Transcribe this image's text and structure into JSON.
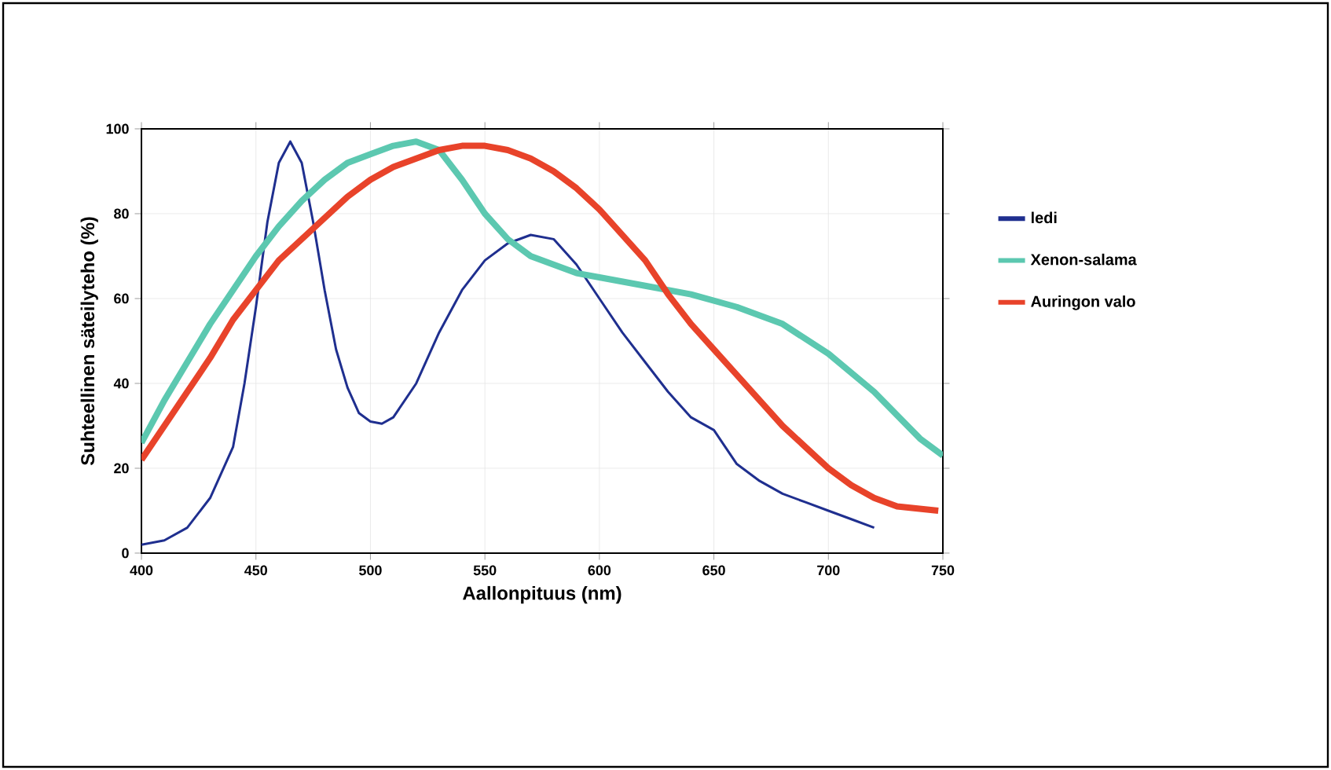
{
  "chart_data": {
    "type": "line",
    "xlabel": "Aallonpituus (nm)",
    "ylabel": "Suhteellinen säteilyteho (%)",
    "xlim": [
      400,
      750
    ],
    "ylim": [
      0,
      100
    ],
    "xticks": [
      400,
      450,
      500,
      550,
      600,
      650,
      700,
      750
    ],
    "yticks": [
      0,
      20,
      40,
      60,
      80,
      100
    ],
    "grid": true,
    "legend": "right",
    "series": [
      {
        "name": "ledi",
        "color": "#1f2f8f",
        "x": [
          400,
          410,
          420,
          430,
          440,
          445,
          450,
          455,
          460,
          465,
          470,
          475,
          480,
          485,
          490,
          495,
          500,
          505,
          510,
          520,
          530,
          540,
          550,
          560,
          570,
          580,
          590,
          600,
          610,
          620,
          630,
          640,
          650,
          660,
          670,
          680,
          690,
          700,
          710,
          720
        ],
        "values": [
          2,
          3,
          6,
          13,
          25,
          40,
          58,
          78,
          92,
          97,
          92,
          78,
          62,
          48,
          39,
          33,
          31,
          30.5,
          32,
          40,
          52,
          62,
          69,
          73,
          75,
          74,
          68,
          60,
          52,
          45,
          38,
          32,
          29,
          21,
          17,
          14,
          12,
          10,
          8,
          6
        ]
      },
      {
        "name": "Xenon-salama",
        "color": "#5cc8b0",
        "x": [
          400,
          410,
          420,
          430,
          440,
          450,
          460,
          470,
          480,
          490,
          500,
          510,
          520,
          530,
          540,
          550,
          560,
          570,
          580,
          590,
          600,
          620,
          640,
          660,
          680,
          700,
          720,
          740,
          750
        ],
        "values": [
          26,
          36,
          45,
          54,
          62,
          70,
          77,
          83,
          88,
          92,
          94,
          96,
          97,
          95,
          88,
          80,
          74,
          70,
          68,
          66,
          65,
          63,
          61,
          58,
          54,
          47,
          38,
          27,
          23
        ]
      },
      {
        "name": "Auringon valo",
        "color": "#e8432a",
        "x": [
          400,
          410,
          420,
          430,
          440,
          450,
          460,
          470,
          480,
          490,
          500,
          510,
          520,
          530,
          540,
          550,
          560,
          570,
          580,
          590,
          600,
          610,
          620,
          630,
          640,
          650,
          660,
          670,
          680,
          690,
          700,
          710,
          720,
          730,
          748
        ],
        "values": [
          22,
          30,
          38,
          46,
          55,
          62,
          69,
          74,
          79,
          84,
          88,
          91,
          93,
          95,
          96,
          96,
          95,
          93,
          90,
          86,
          81,
          75,
          69,
          61,
          54,
          48,
          42,
          36,
          30,
          25,
          20,
          16,
          13,
          11,
          10
        ]
      }
    ]
  }
}
